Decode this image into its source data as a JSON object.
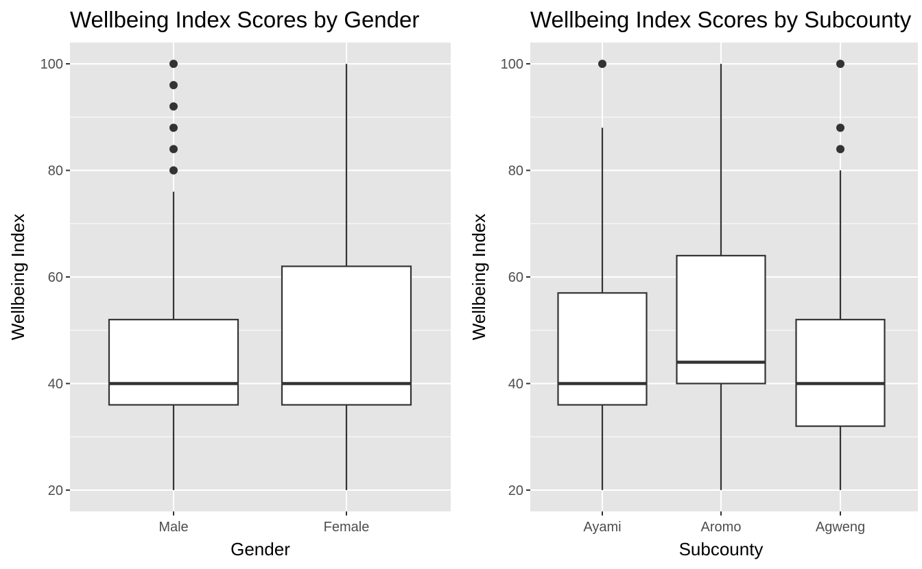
{
  "chart_data": [
    {
      "type": "boxplot",
      "title": "Wellbeing Index Scores by Gender",
      "xlabel": "Gender",
      "ylabel": "Wellbeing Index",
      "ylim": [
        16,
        104
      ],
      "yticks": [
        20,
        40,
        60,
        80,
        100
      ],
      "grid": true,
      "categories": [
        "Male",
        "Female"
      ],
      "boxes": [
        {
          "category": "Male",
          "whisker_low": 20,
          "q1": 36,
          "median": 40,
          "q3": 52,
          "whisker_high": 76,
          "outliers": [
            80,
            84,
            88,
            92,
            96,
            100
          ]
        },
        {
          "category": "Female",
          "whisker_low": 20,
          "q1": 36,
          "median": 40,
          "q3": 62,
          "whisker_high": 100,
          "outliers": []
        }
      ]
    },
    {
      "type": "boxplot",
      "title": "Wellbeing Index Scores by Subcounty",
      "xlabel": "Subcounty",
      "ylabel": "Wellbeing Index",
      "ylim": [
        16,
        104
      ],
      "yticks": [
        20,
        40,
        60,
        80,
        100
      ],
      "grid": true,
      "categories": [
        "Ayami",
        "Aromo",
        "Agweng"
      ],
      "boxes": [
        {
          "category": "Ayami",
          "whisker_low": 20,
          "q1": 36,
          "median": 40,
          "q3": 57,
          "whisker_high": 88,
          "outliers": [
            100
          ]
        },
        {
          "category": "Aromo",
          "whisker_low": 20,
          "q1": 40,
          "median": 44,
          "q3": 64,
          "whisker_high": 100,
          "outliers": []
        },
        {
          "category": "Agweng",
          "whisker_low": 20,
          "q1": 32,
          "median": 40,
          "q3": 52,
          "whisker_high": 80,
          "outliers": [
            84,
            88,
            100
          ]
        }
      ]
    }
  ]
}
